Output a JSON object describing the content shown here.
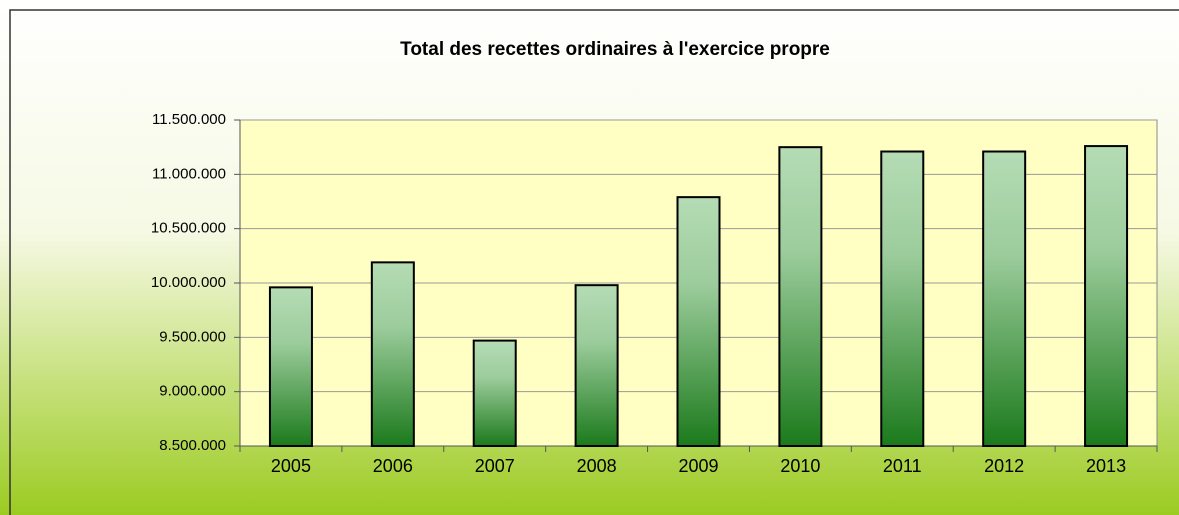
{
  "chart_data": {
    "type": "bar",
    "title": "Total des recettes ordinaires à l'exercice propre",
    "categories": [
      "2005",
      "2006",
      "2007",
      "2008",
      "2009",
      "2010",
      "2011",
      "2012",
      "2013"
    ],
    "values": [
      9960000,
      10190000,
      9470000,
      9980000,
      10790000,
      11250000,
      11210000,
      11210000,
      11260000
    ],
    "color": "#1b7a1b",
    "ylim": [
      8500000,
      11500000
    ],
    "yticks": [
      {
        "value": 8500000,
        "label": "8.500.000"
      },
      {
        "value": 9000000,
        "label": "9.000.000"
      },
      {
        "value": 9500000,
        "label": "9.500.000"
      },
      {
        "value": 10000000,
        "label": "10.000.000"
      },
      {
        "value": 10500000,
        "label": "10.500.000"
      },
      {
        "value": 11000000,
        "label": "11.000.000"
      },
      {
        "value": 11500000,
        "label": "11.500.000"
      }
    ],
    "grid": true
  }
}
